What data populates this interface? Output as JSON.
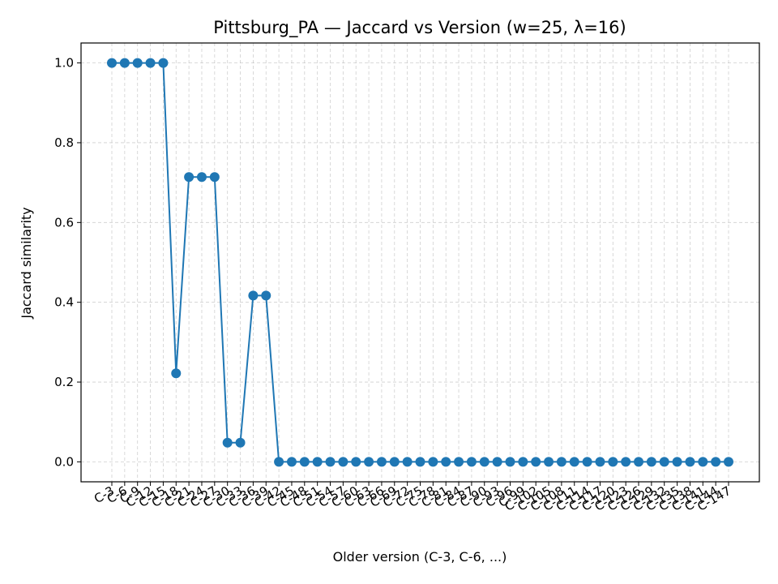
{
  "chart_data": {
    "type": "line",
    "title": "Pittsburg_PA — Jaccard vs Version (w=25, λ=16)",
    "xlabel": "Older version (C-3, C-6, ...)",
    "ylabel": "Jaccard similarity",
    "ylim": [
      -0.05,
      1.05
    ],
    "yticks": [
      "0.0",
      "0.2",
      "0.4",
      "0.6",
      "0.8",
      "1.0"
    ],
    "grid": true,
    "color": "#1f77b4",
    "categories": [
      "C-3",
      "C-6",
      "C-9",
      "C-12",
      "C-15",
      "C-18",
      "C-21",
      "C-24",
      "C-27",
      "C-30",
      "C-33",
      "C-36",
      "C-39",
      "C-42",
      "C-45",
      "C-48",
      "C-51",
      "C-54",
      "C-57",
      "C-60",
      "C-63",
      "C-66",
      "C-69",
      "C-72",
      "C-75",
      "C-78",
      "C-81",
      "C-84",
      "C-87",
      "C-90",
      "C-93",
      "C-96",
      "C-99",
      "C-102",
      "C-105",
      "C-108",
      "C-111",
      "C-114",
      "C-117",
      "C-120",
      "C-123",
      "C-126",
      "C-129",
      "C-132",
      "C-135",
      "C-138",
      "C-141",
      "C-144",
      "C-147"
    ],
    "values": [
      1.0,
      1.0,
      1.0,
      1.0,
      1.0,
      0.222,
      0.714,
      0.714,
      0.714,
      0.048,
      0.048,
      0.417,
      0.417,
      0,
      0,
      0,
      0,
      0,
      0,
      0,
      0,
      0,
      0,
      0,
      0,
      0,
      0,
      0,
      0,
      0,
      0,
      0,
      0,
      0,
      0,
      0,
      0,
      0,
      0,
      0,
      0,
      0,
      0,
      0,
      0,
      0,
      0,
      0,
      0
    ]
  }
}
